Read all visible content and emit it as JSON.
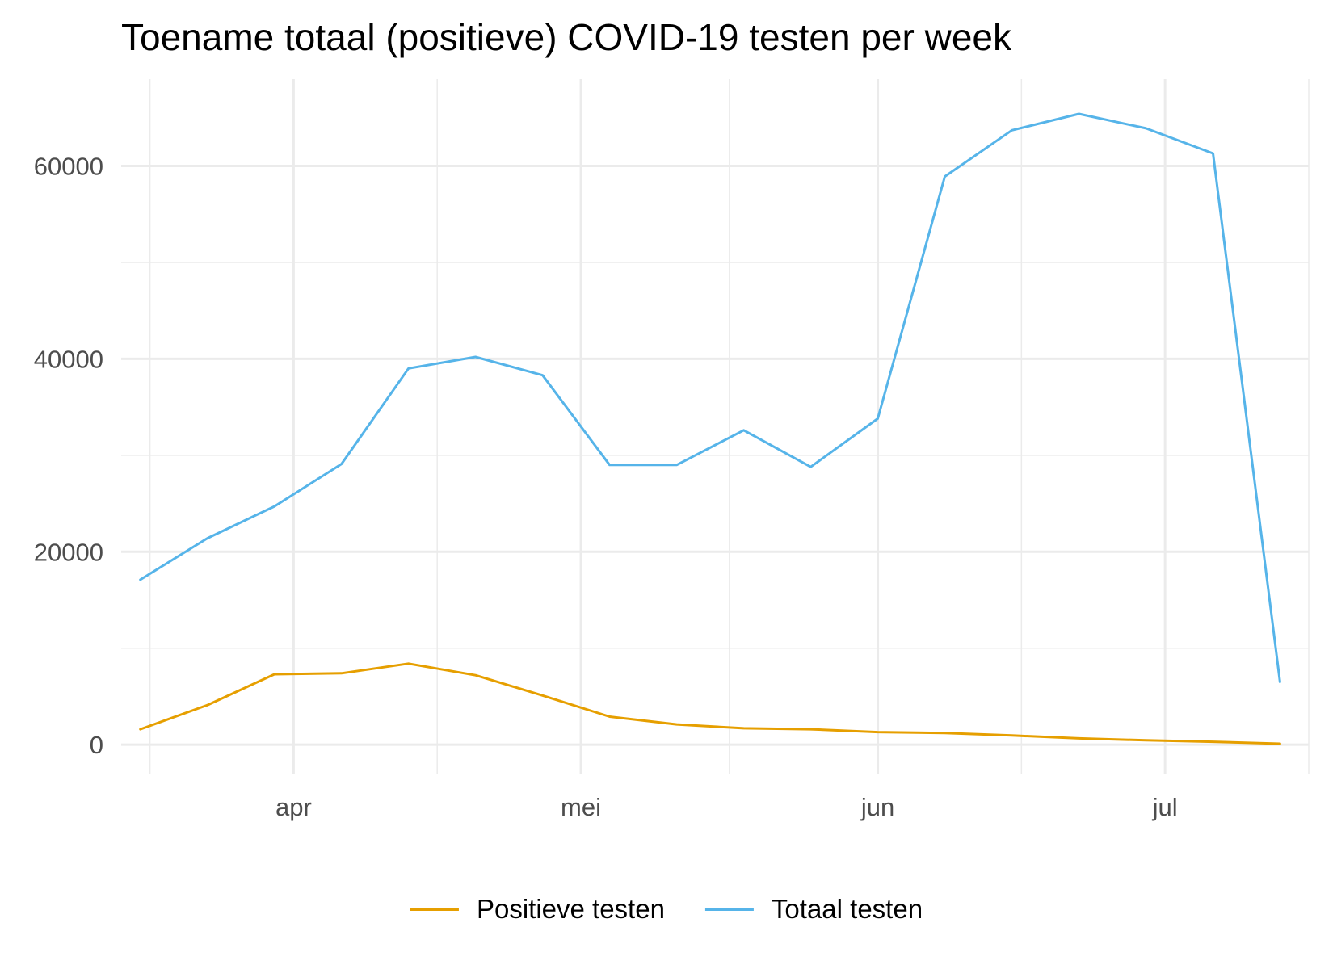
{
  "chart_data": {
    "type": "line",
    "title": "Toename totaal (positieve) COVID-19 testen per week",
    "xlabel": "",
    "ylabel": "",
    "x": [
      "03-16",
      "03-23",
      "03-30",
      "04-06",
      "04-13",
      "04-20",
      "04-27",
      "05-04",
      "05-11",
      "05-18",
      "05-25",
      "06-01",
      "06-08",
      "06-15",
      "06-22",
      "06-29",
      "07-06",
      "07-13"
    ],
    "x_ticks": [
      {
        "date": "04-01",
        "label": "apr"
      },
      {
        "date": "05-01",
        "label": "mei"
      },
      {
        "date": "06-01",
        "label": "jun"
      },
      {
        "date": "07-01",
        "label": "jul"
      }
    ],
    "y_ticks": [
      0,
      20000,
      40000,
      60000
    ],
    "ylim": [
      -3000,
      69000
    ],
    "xlim": [
      "03-14",
      "07-16"
    ],
    "grid": true,
    "legend_position": "bottom",
    "series": [
      {
        "name": "Positieve testen",
        "color": "#E69F00",
        "values": [
          1600,
          4100,
          7300,
          7400,
          8400,
          7200,
          5100,
          2900,
          2100,
          1700,
          1600,
          1300,
          1200,
          950,
          650,
          450,
          300,
          100
        ]
      },
      {
        "name": "Totaal testen",
        "color": "#56B4E9",
        "values": [
          17100,
          21400,
          24700,
          29100,
          39000,
          40200,
          38300,
          29000,
          29000,
          32600,
          28800,
          33800,
          58900,
          63700,
          65400,
          63900,
          61300,
          6500
        ]
      }
    ]
  }
}
